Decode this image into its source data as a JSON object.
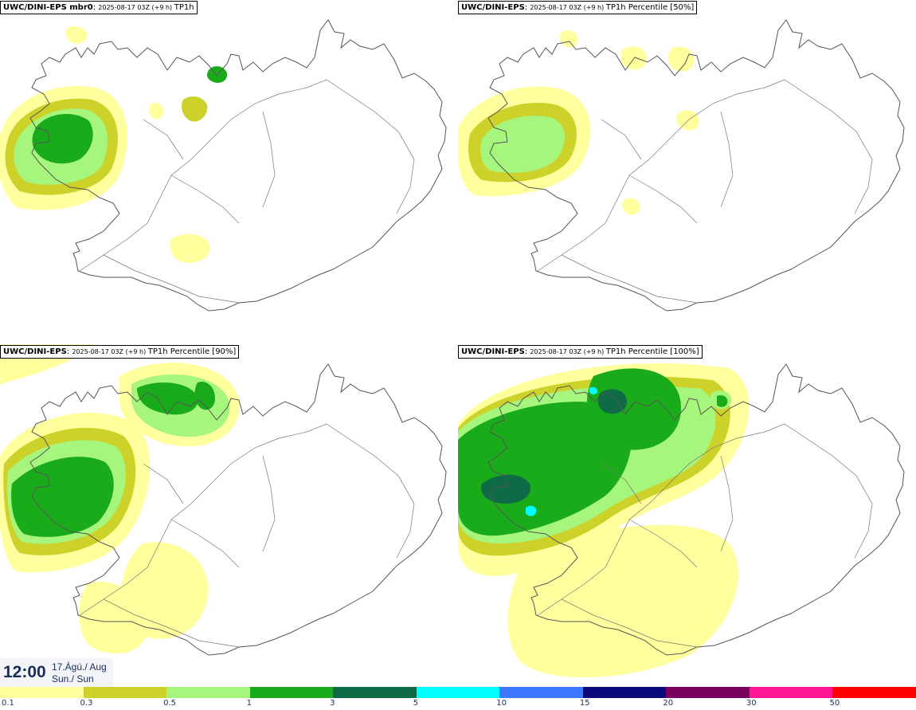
{
  "panels": [
    {
      "title_bold": "UWC/DINI-EPS mbr0",
      "title_sep": ":",
      "title_time": "2025-08-17 03Z (+9 h)",
      "title_field": "TP1h"
    },
    {
      "title_bold": "UWC/DINI-EPS",
      "title_sep": ":",
      "title_time": "2025-08-17 03Z (+9 h)",
      "title_field": "TP1h Percentile [50%]"
    },
    {
      "title_bold": "UWC/DINI-EPS",
      "title_sep": ":",
      "title_time": "2025-08-17 03Z (+9 h)",
      "title_field": "TP1h Percentile [90%]"
    },
    {
      "title_bold": "UWC/DINI-EPS",
      "title_sep": ":",
      "title_time": "2025-08-17 03Z (+9 h)",
      "title_field": "TP1h Percentile [100%]"
    }
  ],
  "valid_time": {
    "time": "12:00",
    "date_line1": "17.Ágú./ Aug",
    "date_line2": "Sun./ Sun"
  },
  "legend": {
    "labels": [
      "0.1",
      "0.3",
      "0.5",
      "1",
      "3",
      "5",
      "10",
      "15",
      "20",
      "30",
      "50"
    ],
    "colors": [
      "#ffff9e",
      "#cdd22a",
      "#a6f57d",
      "#1aab1a",
      "#0e6b45",
      "#00ffff",
      "#3c78ff",
      "#0a0a7a",
      "#7a005f",
      "#ff1493",
      "#ff0000"
    ]
  },
  "map_colors": {
    "light": "#ffff9e",
    "olive": "#cdd22a",
    "lime": "#a6f57d",
    "green": "#1aab1a",
    "dark": "#0e6b45",
    "cyan": "#00ffff",
    "coast": "#555555",
    "road": "#777777"
  }
}
